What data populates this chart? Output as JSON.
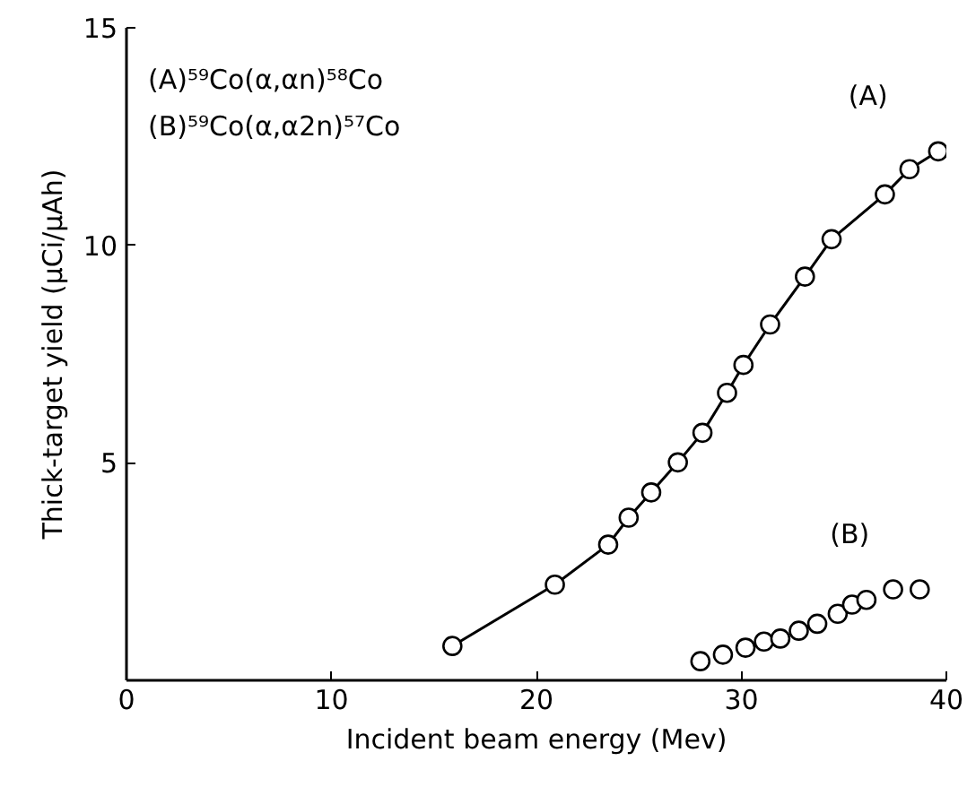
{
  "chart_data": {
    "type": "scatter",
    "xlabel": "Incident beam energy (Mev)",
    "ylabel": "Thick-target yield (μCi/μAh)",
    "annotations": [
      "(A)⁵⁹Co(α,αn)⁵⁸Co",
      "(B)⁵⁹Co(α,α2n)⁵⁷Co"
    ],
    "xlim": [
      0,
      40
    ],
    "ylim": [
      0,
      15
    ],
    "xticks": [
      0,
      10,
      20,
      30,
      40
    ],
    "yticks": [
      5,
      10,
      15
    ],
    "grid": false,
    "legend": false,
    "marker": "circle",
    "series": [
      {
        "name": "(A)",
        "type": "line",
        "color": "#000000",
        "x": [
          15.9,
          20.9,
          23.5,
          24.5,
          25.6,
          26.9,
          28.1,
          29.3,
          30.1,
          31.4,
          33.1,
          34.4,
          37.0,
          38.2,
          39.6
        ],
        "values": [
          0.79,
          2.2,
          3.12,
          3.74,
          4.32,
          5.01,
          5.69,
          6.61,
          7.25,
          8.18,
          9.28,
          10.14,
          11.17,
          11.75,
          12.16
        ]
      },
      {
        "name": "(B)",
        "color": "#000000",
        "x": [
          28.0,
          29.1,
          30.2,
          31.1,
          31.9,
          32.8,
          33.7,
          34.7,
          35.4,
          36.1,
          37.4,
          38.7
        ],
        "values": [
          0.44,
          0.59,
          0.75,
          0.89,
          0.96,
          1.14,
          1.3,
          1.53,
          1.74,
          1.85,
          2.09,
          2.09
        ]
      }
    ]
  }
}
